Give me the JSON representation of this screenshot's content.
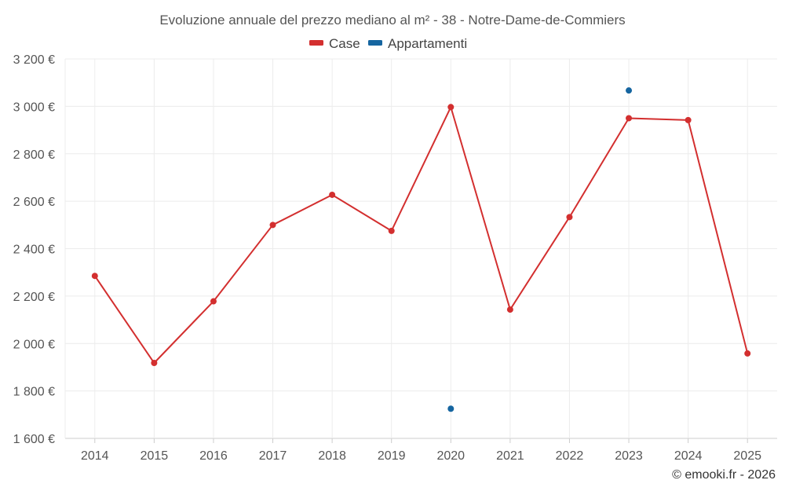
{
  "chart_data": {
    "type": "line",
    "title": "Evoluzione annuale del prezzo mediano al m² - 38 - Notre-Dame-de-Commiers",
    "xlabel": "",
    "ylabel": "",
    "categories": [
      "2014",
      "2015",
      "2016",
      "2017",
      "2018",
      "2019",
      "2020",
      "2021",
      "2022",
      "2023",
      "2024",
      "2025"
    ],
    "y_ticks": [
      "1 600 €",
      "1 800 €",
      "2 000 €",
      "2 200 €",
      "2 400 €",
      "2 600 €",
      "2 800 €",
      "3 000 €",
      "3 200 €"
    ],
    "ylim": [
      1600,
      3200
    ],
    "grid": true,
    "legend_position": "top-center",
    "series": [
      {
        "name": "Case",
        "color": "#d32f2f",
        "values": [
          2285,
          1918,
          2178,
          2500,
          2627,
          2475,
          2997,
          2143,
          2533,
          2950,
          2942,
          1958
        ]
      },
      {
        "name": "Appartamenti",
        "color": "#1565a0",
        "values": [
          null,
          null,
          null,
          null,
          null,
          null,
          1725,
          null,
          null,
          3067,
          null,
          null
        ]
      }
    ]
  },
  "credit": "© emooki.fr - 2026"
}
